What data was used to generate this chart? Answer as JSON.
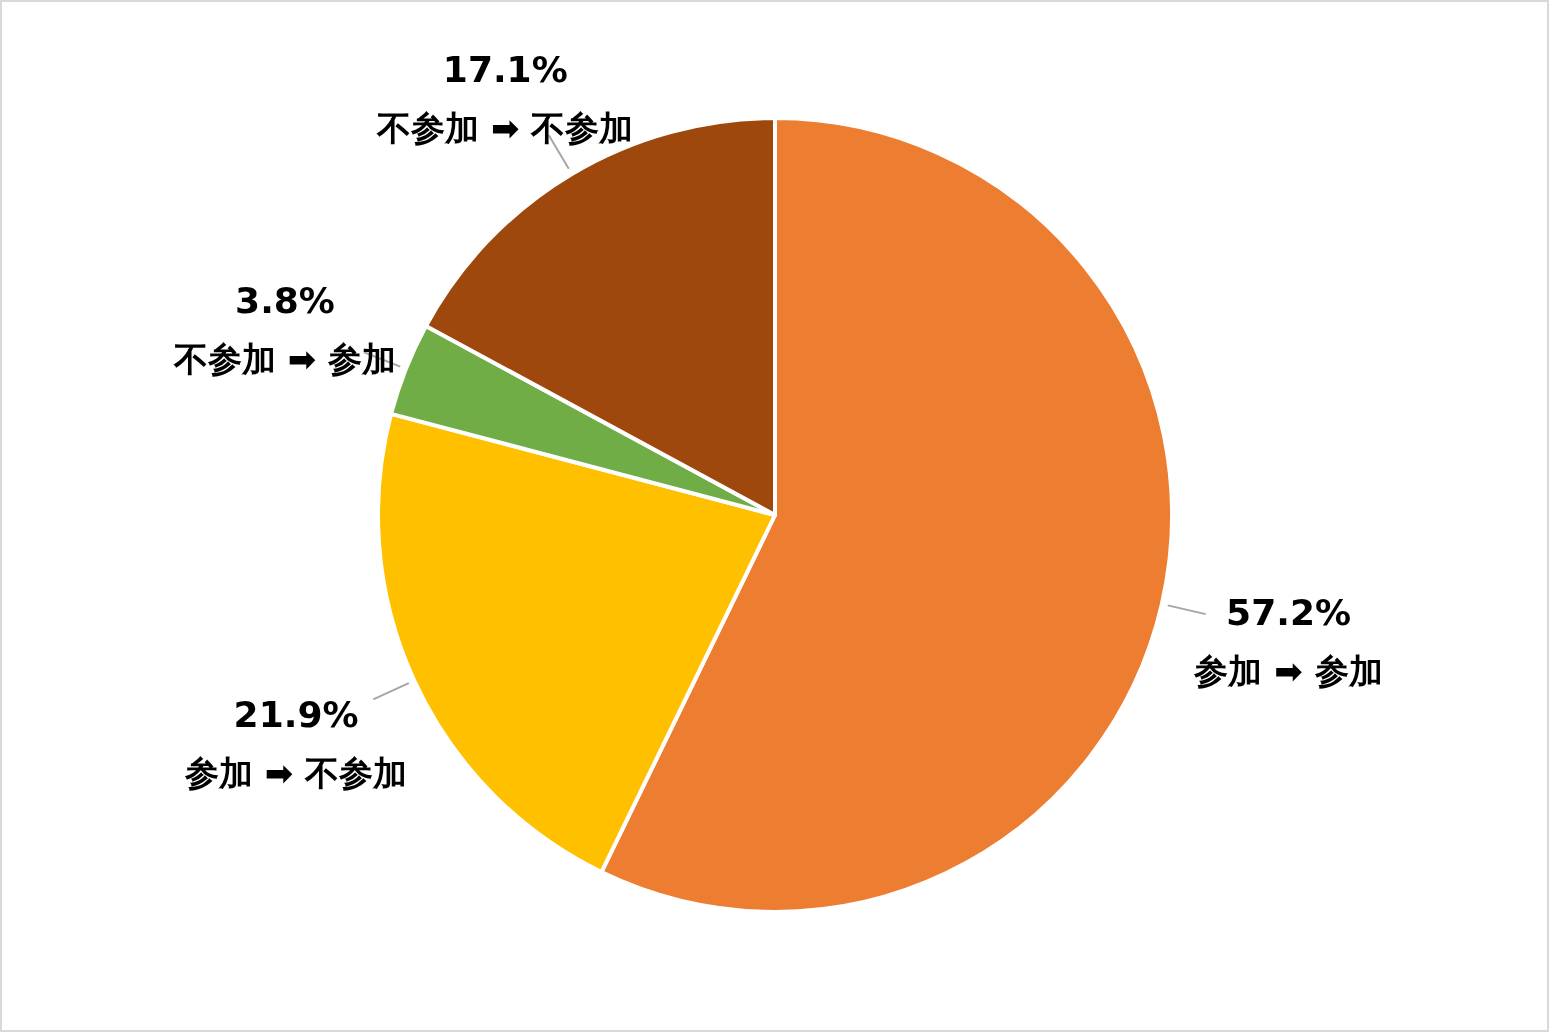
{
  "chart_data": {
    "type": "pie",
    "categories": [
      "参加 ➡ 参加",
      "参加 ➡ 不参加",
      "不参加 ➡ 参加",
      "不参加 ➡ 不参加"
    ],
    "values": [
      57.2,
      21.9,
      3.8,
      17.1
    ],
    "colors": [
      "#ed7d31",
      "#ffc000",
      "#70ad47",
      "#9e480e"
    ],
    "value_labels": [
      "57.2%",
      "21.9%",
      "3.8%",
      "17.1%"
    ],
    "legend": false
  }
}
